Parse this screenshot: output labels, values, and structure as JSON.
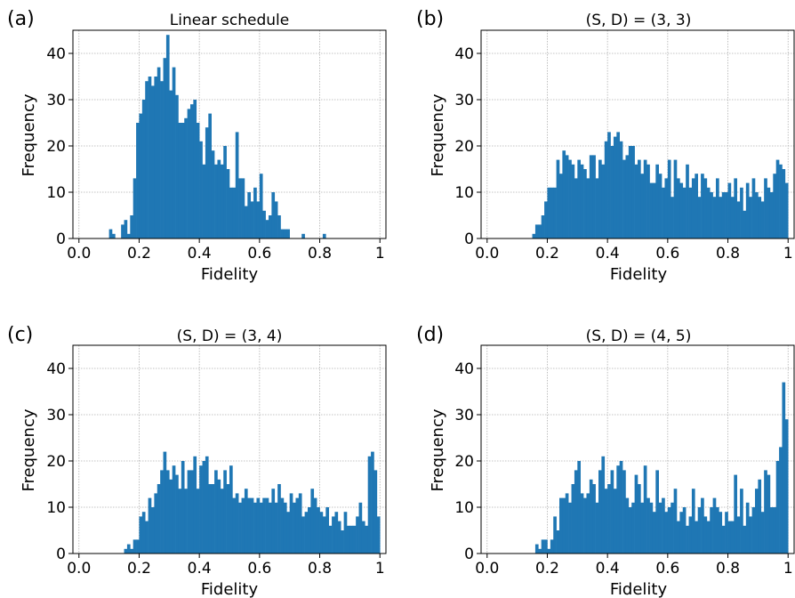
{
  "chart_data": [
    {
      "panel_label": "(a)",
      "type": "bar",
      "title": "Linear schedule",
      "xlabel": "Fidelity",
      "ylabel": "Frequency",
      "xlim": [
        0,
        1
      ],
      "ylim": [
        0,
        45
      ],
      "xticks": [
        "0.0",
        "0.2",
        "0.4",
        "0.6",
        "0.8",
        "1"
      ],
      "yticks": [
        "0",
        "10",
        "20",
        "30",
        "40"
      ],
      "grid": true,
      "bin_width": 0.01,
      "bin_start": 0.0,
      "values": [
        0,
        0,
        0,
        0,
        0,
        0,
        0,
        0,
        0,
        0,
        2,
        1,
        0,
        0,
        3,
        4,
        1,
        5,
        13,
        25,
        27,
        30,
        34,
        35,
        33,
        35,
        37,
        34,
        39,
        44,
        32,
        37,
        31,
        25,
        25,
        26,
        28,
        29,
        30,
        25,
        21,
        16,
        24,
        27,
        19,
        16,
        17,
        16,
        20,
        15,
        11,
        11,
        23,
        13,
        13,
        7,
        10,
        8,
        11,
        8,
        14,
        6,
        4,
        5,
        10,
        8,
        5,
        2,
        2,
        2,
        0,
        0,
        0,
        0,
        1,
        0,
        0,
        0,
        0,
        0,
        0,
        1,
        0,
        0,
        0,
        0,
        0,
        0,
        0,
        0,
        0,
        0,
        0,
        0,
        0,
        0,
        0,
        0,
        0,
        0
      ]
    },
    {
      "panel_label": "(b)",
      "type": "bar",
      "title": "(S, D) = (3, 3)",
      "xlabel": "Fidelity",
      "ylabel": "Frequency",
      "xlim": [
        0,
        1
      ],
      "ylim": [
        0,
        45
      ],
      "xticks": [
        "0.0",
        "0.2",
        "0.4",
        "0.6",
        "0.8",
        "1"
      ],
      "yticks": [
        "0",
        "10",
        "20",
        "30",
        "40"
      ],
      "grid": true,
      "bin_width": 0.01,
      "bin_start": 0.0,
      "values": [
        0,
        0,
        0,
        0,
        0,
        0,
        0,
        0,
        0,
        0,
        0,
        0,
        0,
        0,
        0,
        1,
        3,
        3,
        5,
        8,
        11,
        11,
        11,
        17,
        14,
        19,
        18,
        17,
        16,
        13,
        17,
        16,
        15,
        13,
        18,
        18,
        13,
        17,
        16,
        21,
        23,
        20,
        22,
        23,
        21,
        17,
        18,
        20,
        20,
        16,
        17,
        14,
        17,
        16,
        12,
        12,
        16,
        14,
        11,
        13,
        17,
        9,
        17,
        13,
        12,
        11,
        16,
        11,
        13,
        14,
        9,
        14,
        13,
        11,
        10,
        9,
        13,
        9,
        10,
        10,
        12,
        9,
        13,
        8,
        11,
        6,
        12,
        9,
        13,
        10,
        9,
        8,
        13,
        11,
        10,
        14,
        17,
        16,
        15,
        12
      ]
    },
    {
      "panel_label": "(c)",
      "type": "bar",
      "title": "(S, D) = (3, 4)",
      "xlabel": "Fidelity",
      "ylabel": "Frequency",
      "xlim": [
        0,
        1
      ],
      "ylim": [
        0,
        45
      ],
      "xticks": [
        "0.0",
        "0.2",
        "0.4",
        "0.6",
        "0.8",
        "1"
      ],
      "yticks": [
        "0",
        "10",
        "20",
        "30",
        "40"
      ],
      "grid": true,
      "bin_width": 0.01,
      "bin_start": 0.0,
      "values": [
        0,
        0,
        0,
        0,
        0,
        0,
        0,
        0,
        0,
        0,
        0,
        0,
        0,
        0,
        0,
        1,
        2,
        1,
        3,
        3,
        8,
        9,
        7,
        12,
        10,
        13,
        15,
        18,
        22,
        18,
        16,
        19,
        17,
        14,
        20,
        14,
        18,
        18,
        21,
        14,
        19,
        20,
        21,
        15,
        15,
        18,
        16,
        14,
        18,
        15,
        19,
        12,
        13,
        11,
        12,
        14,
        12,
        12,
        11,
        12,
        11,
        12,
        12,
        11,
        14,
        11,
        15,
        12,
        11,
        9,
        13,
        11,
        12,
        13,
        8,
        9,
        10,
        14,
        12,
        10,
        9,
        8,
        10,
        6,
        8,
        9,
        7,
        5,
        9,
        6,
        6,
        6,
        8,
        11,
        7,
        6,
        21,
        22,
        18,
        8
      ]
    },
    {
      "panel_label": "(d)",
      "type": "bar",
      "title": "(S, D) = (4, 5)",
      "xlabel": "Fidelity",
      "ylabel": "Frequency",
      "xlim": [
        0,
        1
      ],
      "ylim": [
        0,
        45
      ],
      "xticks": [
        "0.0",
        "0.2",
        "0.4",
        "0.6",
        "0.8",
        "1"
      ],
      "yticks": [
        "0",
        "10",
        "20",
        "30",
        "40"
      ],
      "grid": true,
      "bin_width": 0.01,
      "bin_start": 0.0,
      "values": [
        0,
        0,
        0,
        0,
        0,
        0,
        0,
        0,
        0,
        0,
        0,
        0,
        0,
        0,
        0,
        0,
        2,
        1,
        3,
        3,
        1,
        3,
        8,
        5,
        12,
        12,
        13,
        11,
        15,
        18,
        20,
        13,
        12,
        13,
        16,
        15,
        11,
        18,
        21,
        14,
        15,
        18,
        14,
        19,
        20,
        18,
        12,
        10,
        11,
        17,
        15,
        11,
        19,
        12,
        11,
        9,
        18,
        11,
        12,
        9,
        10,
        11,
        14,
        7,
        9,
        10,
        6,
        8,
        14,
        7,
        10,
        12,
        8,
        7,
        10,
        12,
        10,
        9,
        6,
        9,
        7,
        7,
        17,
        8,
        14,
        6,
        11,
        8,
        10,
        14,
        16,
        9,
        18,
        17,
        10,
        10,
        20,
        23,
        37,
        29
      ]
    }
  ]
}
